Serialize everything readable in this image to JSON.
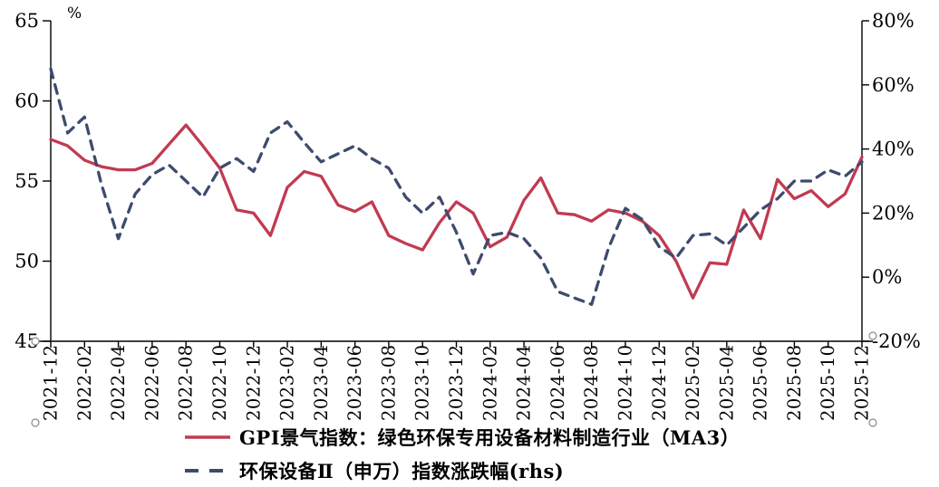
{
  "chart_data": {
    "type": "line",
    "title": "",
    "x": [
      "2021-12",
      "2022-01",
      "2022-02",
      "2022-03",
      "2022-04",
      "2022-05",
      "2022-06",
      "2022-07",
      "2022-08",
      "2022-09",
      "2022-10",
      "2022-11",
      "2022-12",
      "2023-01",
      "2023-02",
      "2023-03",
      "2023-04",
      "2023-05",
      "2023-06",
      "2023-07",
      "2023-08",
      "2023-09",
      "2023-10",
      "2023-11",
      "2023-12",
      "2024-01",
      "2024-02",
      "2024-03",
      "2024-04",
      "2024-05",
      "2024-06",
      "2024-07",
      "2024-08",
      "2024-09",
      "2024-10",
      "2024-11",
      "2024-12",
      "2025-01",
      "2025-02",
      "2025-03",
      "2025-04",
      "2025-05",
      "2025-06",
      "2025-07",
      "2025-08",
      "2025-09",
      "2025-10",
      "2025-11",
      "2025-12"
    ],
    "x_tick_labels": [
      "2021-12",
      "2022-02",
      "2022-04",
      "2022-06",
      "2022-08",
      "2022-10",
      "2022-12",
      "2023-02",
      "2023-04",
      "2023-06",
      "2023-08",
      "2023-10",
      "2023-12",
      "2024-02",
      "2024-04",
      "2024-06",
      "2024-08",
      "2024-10",
      "2024-12",
      "2025-02",
      "2025-04",
      "2025-06",
      "2025-08",
      "2025-10",
      "2025-12"
    ],
    "left_axis": {
      "unit": "%",
      "min": 45,
      "max": 65,
      "ticks": [
        65,
        60,
        55,
        50,
        45
      ]
    },
    "right_axis": {
      "min": -20,
      "max": 80,
      "ticks": [
        80,
        60,
        40,
        20,
        0,
        -20
      ],
      "suffix": "%"
    },
    "grid": false,
    "legend_position": "bottom-left",
    "series": [
      {
        "name": "GPI景气指数：绿色环保专用设备材料制造行业（MA3）",
        "axis": "left",
        "style": "solid",
        "color": "#c13a52",
        "values": [
          57.6,
          57.2,
          56.3,
          55.9,
          55.7,
          55.7,
          56.1,
          57.3,
          58.5,
          57.2,
          55.8,
          53.2,
          53.0,
          51.6,
          54.6,
          55.6,
          55.3,
          53.5,
          53.1,
          53.7,
          51.6,
          51.1,
          50.7,
          52.4,
          53.7,
          53.0,
          50.9,
          51.5,
          53.8,
          55.2,
          53.0,
          52.9,
          52.5,
          53.2,
          53.0,
          52.5,
          51.6,
          50.0,
          47.7,
          49.9,
          49.8,
          53.2,
          51.4,
          55.1,
          53.9,
          54.4,
          53.4,
          54.2,
          56.5
        ]
      },
      {
        "name": "环保设备Ⅱ（申万）指数涨跌幅(rhs)",
        "axis": "right",
        "style": "dashed",
        "color": "#3e4b6e",
        "values": [
          65,
          45,
          50,
          29,
          12,
          26,
          32,
          35,
          30,
          25,
          34,
          37,
          33,
          45,
          48.5,
          42,
          36,
          38.5,
          41,
          37,
          34,
          25,
          20,
          25,
          14,
          1,
          13,
          14,
          12,
          6,
          -4.5,
          -6.5,
          -8.5,
          9,
          21.5,
          18,
          9.5,
          6,
          13,
          13.5,
          10,
          15.5,
          21,
          24.5,
          30,
          30,
          33.5,
          31.5,
          36
        ]
      }
    ]
  }
}
